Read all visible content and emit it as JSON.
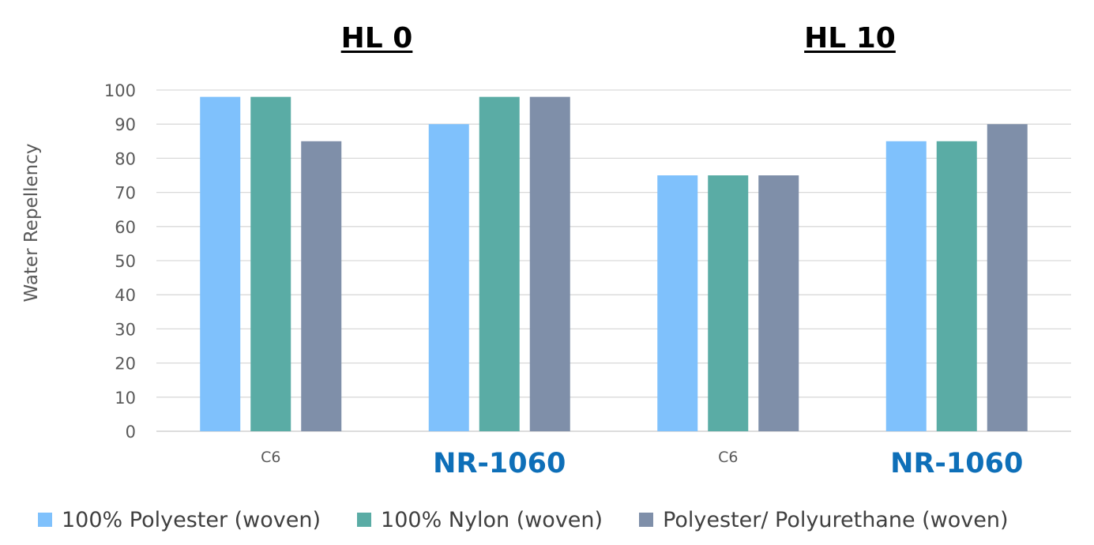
{
  "chart_data": {
    "type": "bar",
    "title": "",
    "group_titles": [
      "HL 0",
      "HL 10"
    ],
    "categories": [
      "C6",
      "NR-1060",
      "C6",
      "NR-1060"
    ],
    "ylabel": "Water Repellency",
    "xlabel": "",
    "ylim": [
      0,
      100
    ],
    "yticks": [
      0,
      10,
      20,
      30,
      40,
      50,
      60,
      70,
      80,
      90,
      100
    ],
    "grid": true,
    "legend_position": "bottom",
    "highlight_category": "NR-1060",
    "highlight_color": "#0E6FB8",
    "series": [
      {
        "name": "100% Polyester (woven)",
        "color": "#7FC1FC",
        "values": [
          98,
          90,
          75,
          85
        ]
      },
      {
        "name": "100% Nylon (woven)",
        "color": "#5AACA5",
        "values": [
          98,
          98,
          75,
          85
        ]
      },
      {
        "name": "Polyester/ Polyurethane (woven)",
        "color": "#7F8FA9",
        "values": [
          85,
          98,
          75,
          90
        ]
      }
    ]
  }
}
